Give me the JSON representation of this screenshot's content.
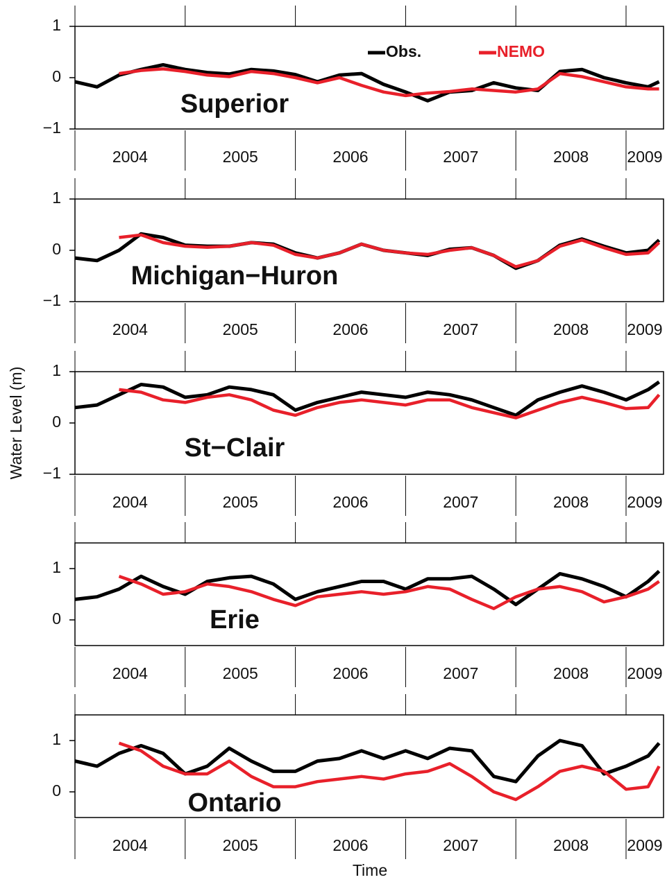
{
  "y_label": "Water Level (m)",
  "x_label": "Time",
  "chart_data": [
    {
      "type": "line",
      "title": "Superior",
      "legend": true,
      "x": [
        2004.0,
        2004.2,
        2004.4,
        2004.6,
        2004.8,
        2005.0,
        2005.2,
        2005.4,
        2005.6,
        2005.8,
        2006.0,
        2006.2,
        2006.4,
        2006.6,
        2006.8,
        2007.0,
        2007.2,
        2007.4,
        2007.6,
        2007.8,
        2008.0,
        2008.2,
        2008.4,
        2008.6,
        2008.8,
        2009.0,
        2009.2,
        2009.3
      ],
      "xlim": [
        2004,
        2009.34
      ],
      "xticks": [
        2004,
        2005,
        2006,
        2007,
        2008,
        2009
      ],
      "xticklabels": [
        {
          "value": 2004.5,
          "label": "2004"
        },
        {
          "value": 2005.5,
          "label": "2005"
        },
        {
          "value": 2006.5,
          "label": "2006"
        },
        {
          "value": 2007.5,
          "label": "2007"
        },
        {
          "value": 2008.5,
          "label": "2008"
        },
        {
          "value": 2009.17,
          "label": "2009"
        }
      ],
      "ylim": [
        -1,
        1
      ],
      "yticks": [
        {
          "value": -1,
          "label": "−1"
        },
        0,
        1
      ],
      "series": [
        {
          "name": "Obs.",
          "color": "#000000",
          "values": [
            -0.08,
            -0.18,
            0.05,
            0.16,
            0.25,
            0.16,
            0.1,
            0.07,
            0.16,
            0.13,
            0.06,
            -0.08,
            0.05,
            0.08,
            -0.13,
            -0.28,
            -0.45,
            -0.28,
            -0.25,
            -0.1,
            -0.2,
            -0.25,
            0.12,
            0.16,
            0,
            -0.1,
            -0.18,
            -0.08
          ]
        },
        {
          "name": "NEMO",
          "color": "#e8202a",
          "values": [
            null,
            null,
            0.08,
            0.14,
            0.17,
            0.12,
            0.05,
            0.02,
            0.12,
            0.08,
            0.0,
            -0.1,
            0.0,
            -0.15,
            -0.28,
            -0.35,
            -0.3,
            -0.27,
            -0.22,
            -0.25,
            -0.28,
            -0.22,
            0.08,
            0.02,
            -0.08,
            -0.18,
            -0.22,
            -0.22
          ]
        }
      ]
    },
    {
      "type": "line",
      "title": "Michigan−Huron",
      "x": [
        2004.0,
        2004.2,
        2004.4,
        2004.6,
        2004.8,
        2005.0,
        2005.2,
        2005.4,
        2005.6,
        2005.8,
        2006.0,
        2006.2,
        2006.4,
        2006.6,
        2006.8,
        2007.0,
        2007.2,
        2007.4,
        2007.6,
        2007.8,
        2008.0,
        2008.2,
        2008.4,
        2008.6,
        2008.8,
        2009.0,
        2009.2,
        2009.3
      ],
      "xlim": [
        2004,
        2009.34
      ],
      "xticks": [
        2004,
        2005,
        2006,
        2007,
        2008,
        2009
      ],
      "xticklabels": [
        {
          "value": 2004.5,
          "label": "2004"
        },
        {
          "value": 2005.5,
          "label": "2005"
        },
        {
          "value": 2006.5,
          "label": "2006"
        },
        {
          "value": 2007.5,
          "label": "2007"
        },
        {
          "value": 2008.5,
          "label": "2008"
        },
        {
          "value": 2009.17,
          "label": "2009"
        }
      ],
      "ylim": [
        -1,
        1
      ],
      "yticks": [
        {
          "value": -1,
          "label": "−1"
        },
        0,
        1
      ],
      "series": [
        {
          "color": "#000000",
          "values": [
            -0.15,
            -0.2,
            0.0,
            0.32,
            0.25,
            0.1,
            0.08,
            0.08,
            0.15,
            0.12,
            -0.05,
            -0.15,
            -0.05,
            0.12,
            0.0,
            -0.05,
            -0.1,
            0.02,
            0.05,
            -0.1,
            -0.35,
            -0.2,
            0.1,
            0.22,
            0.08,
            -0.05,
            0.0,
            0.2
          ]
        },
        {
          "color": "#e8202a",
          "values": [
            null,
            null,
            0.25,
            0.3,
            0.15,
            0.08,
            0.06,
            0.08,
            0.15,
            0.1,
            -0.08,
            -0.15,
            -0.05,
            0.12,
            0.0,
            -0.05,
            -0.08,
            0.0,
            0.05,
            -0.1,
            -0.32,
            -0.2,
            0.08,
            0.2,
            0.05,
            -0.08,
            -0.05,
            0.15
          ]
        }
      ]
    },
    {
      "type": "line",
      "title": "St−Clair",
      "x": [
        2004.0,
        2004.2,
        2004.4,
        2004.6,
        2004.8,
        2005.0,
        2005.2,
        2005.4,
        2005.6,
        2005.8,
        2006.0,
        2006.2,
        2006.4,
        2006.6,
        2006.8,
        2007.0,
        2007.2,
        2007.4,
        2007.6,
        2007.8,
        2008.0,
        2008.2,
        2008.4,
        2008.6,
        2008.8,
        2009.0,
        2009.2,
        2009.3
      ],
      "xlim": [
        2004,
        2009.34
      ],
      "xticks": [
        2004,
        2005,
        2006,
        2007,
        2008,
        2009
      ],
      "xticklabels": [
        {
          "value": 2004.5,
          "label": "2004"
        },
        {
          "value": 2005.5,
          "label": "2005"
        },
        {
          "value": 2006.5,
          "label": "2006"
        },
        {
          "value": 2007.5,
          "label": "2007"
        },
        {
          "value": 2008.5,
          "label": "2008"
        },
        {
          "value": 2009.17,
          "label": "2009"
        }
      ],
      "ylim": [
        -1,
        1
      ],
      "yticks": [
        {
          "value": -1,
          "label": "−1"
        },
        0,
        1
      ],
      "series": [
        {
          "color": "#000000",
          "values": [
            0.3,
            0.35,
            0.55,
            0.75,
            0.7,
            0.5,
            0.55,
            0.7,
            0.65,
            0.55,
            0.25,
            0.4,
            0.5,
            0.6,
            0.55,
            0.5,
            0.6,
            0.55,
            0.45,
            0.3,
            0.15,
            0.45,
            0.6,
            0.72,
            0.6,
            0.45,
            0.65,
            0.8
          ]
        },
        {
          "color": "#e8202a",
          "values": [
            null,
            null,
            0.65,
            0.6,
            0.45,
            0.4,
            0.5,
            0.55,
            0.45,
            0.25,
            0.15,
            0.3,
            0.4,
            0.45,
            0.4,
            0.35,
            0.45,
            0.45,
            0.3,
            0.2,
            0.1,
            0.25,
            0.4,
            0.5,
            0.4,
            0.28,
            0.3,
            0.55
          ]
        }
      ]
    },
    {
      "type": "line",
      "title": "Erie",
      "x": [
        2004.0,
        2004.2,
        2004.4,
        2004.6,
        2004.8,
        2005.0,
        2005.2,
        2005.4,
        2005.6,
        2005.8,
        2006.0,
        2006.2,
        2006.4,
        2006.6,
        2006.8,
        2007.0,
        2007.2,
        2007.4,
        2007.6,
        2007.8,
        2008.0,
        2008.2,
        2008.4,
        2008.6,
        2008.8,
        2009.0,
        2009.2,
        2009.3
      ],
      "xlim": [
        2004,
        2009.34
      ],
      "xticks": [
        2004,
        2005,
        2006,
        2007,
        2008,
        2009
      ],
      "xticklabels": [
        {
          "value": 2004.5,
          "label": "2004"
        },
        {
          "value": 2005.5,
          "label": "2005"
        },
        {
          "value": 2006.5,
          "label": "2006"
        },
        {
          "value": 2007.5,
          "label": "2007"
        },
        {
          "value": 2008.5,
          "label": "2008"
        },
        {
          "value": 2009.17,
          "label": "2009"
        }
      ],
      "ylim": [
        -0.5,
        1.5
      ],
      "yticks": [
        0,
        1
      ],
      "series": [
        {
          "color": "#000000",
          "values": [
            0.4,
            0.45,
            0.6,
            0.85,
            0.65,
            0.5,
            0.75,
            0.82,
            0.85,
            0.7,
            0.4,
            0.55,
            0.65,
            0.75,
            0.75,
            0.6,
            0.8,
            0.8,
            0.85,
            0.6,
            0.3,
            0.6,
            0.9,
            0.8,
            0.65,
            0.45,
            0.75,
            0.95
          ]
        },
        {
          "color": "#e8202a",
          "values": [
            null,
            null,
            0.85,
            0.7,
            0.5,
            0.55,
            0.7,
            0.65,
            0.55,
            0.4,
            0.28,
            0.45,
            0.5,
            0.55,
            0.5,
            0.55,
            0.65,
            0.6,
            0.4,
            0.22,
            0.45,
            0.6,
            0.65,
            0.55,
            0.35,
            0.45,
            0.6,
            0.75
          ]
        }
      ]
    },
    {
      "type": "line",
      "title": "Ontario",
      "x": [
        2004.0,
        2004.2,
        2004.4,
        2004.6,
        2004.8,
        2005.0,
        2005.2,
        2005.4,
        2005.6,
        2005.8,
        2006.0,
        2006.2,
        2006.4,
        2006.6,
        2006.8,
        2007.0,
        2007.2,
        2007.4,
        2007.6,
        2007.8,
        2008.0,
        2008.2,
        2008.4,
        2008.6,
        2008.8,
        2009.0,
        2009.2,
        2009.3
      ],
      "xlim": [
        2004,
        2009.34
      ],
      "xticks": [
        2004,
        2005,
        2006,
        2007,
        2008,
        2009
      ],
      "xticklabels": [
        {
          "value": 2004.5,
          "label": "2004"
        },
        {
          "value": 2005.5,
          "label": "2005"
        },
        {
          "value": 2006.5,
          "label": "2006"
        },
        {
          "value": 2007.5,
          "label": "2007"
        },
        {
          "value": 2008.5,
          "label": "2008"
        },
        {
          "value": 2009.17,
          "label": "2009"
        }
      ],
      "ylim": [
        -0.5,
        1.5
      ],
      "yticks": [
        0,
        1
      ],
      "series": [
        {
          "color": "#000000",
          "values": [
            0.6,
            0.5,
            0.75,
            0.9,
            0.75,
            0.35,
            0.5,
            0.85,
            0.6,
            0.4,
            0.4,
            0.6,
            0.65,
            0.8,
            0.65,
            0.8,
            0.65,
            0.85,
            0.8,
            0.3,
            0.2,
            0.7,
            1.0,
            0.9,
            0.35,
            0.5,
            0.7,
            0.95
          ]
        },
        {
          "color": "#e8202a",
          "values": [
            null,
            null,
            0.95,
            0.8,
            0.5,
            0.35,
            0.35,
            0.6,
            0.3,
            0.1,
            0.1,
            0.2,
            0.25,
            0.3,
            0.25,
            0.35,
            0.4,
            0.55,
            0.3,
            0.0,
            -0.15,
            0.1,
            0.4,
            0.5,
            0.4,
            0.05,
            0.1,
            0.5
          ]
        }
      ]
    }
  ]
}
